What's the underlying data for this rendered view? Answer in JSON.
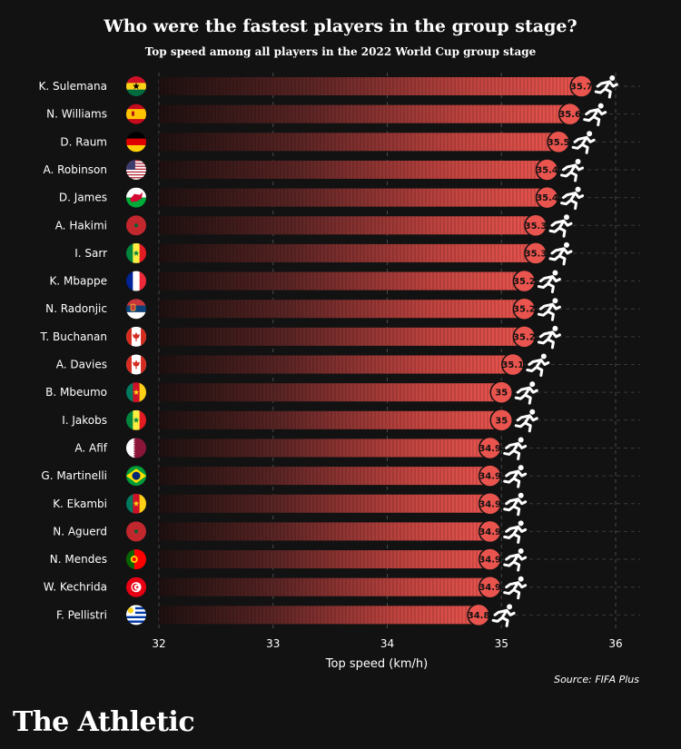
{
  "header": {
    "title": "Who were the fastest players in the group stage?",
    "subtitle": "Top speed among all players in the 2022 World Cup group stage"
  },
  "footer": {
    "source": "Source: FIFA Plus",
    "brand": "The Athletic"
  },
  "colors": {
    "background": "#121212",
    "bar": "#e8524c",
    "bar_dark": "#2a1414",
    "grid": "#4a4a4a"
  },
  "chart_data": {
    "type": "bar",
    "orientation": "horizontal",
    "title": "Who were the fastest players in the group stage?",
    "subtitle": "Top speed among all players in the 2022 World Cup group stage",
    "xlabel": "Top speed (km/h)",
    "ylabel": "",
    "xlim": [
      32,
      36
    ],
    "xticks": [
      32,
      33,
      34,
      35,
      36
    ],
    "grid": "vertical dashed",
    "categories": [
      "K. Sulemana",
      "N. Williams",
      "D. Raum",
      "A. Robinson",
      "D. James",
      "A. Hakimi",
      "I. Sarr",
      "K. Mbappe",
      "N. Radonjic",
      "T. Buchanan",
      "A. Davies",
      "B. Mbeumo",
      "I. Jakobs",
      "A. Afif",
      "G. Martinelli",
      "K. Ekambi",
      "N. Aguerd",
      "N. Mendes",
      "W. Kechrida",
      "F. Pellistri"
    ],
    "values": [
      35.7,
      35.6,
      35.5,
      35.4,
      35.4,
      35.3,
      35.3,
      35.2,
      35.2,
      35.2,
      35.1,
      35,
      35,
      34.9,
      34.9,
      34.9,
      34.9,
      34.9,
      34.9,
      34.8
    ],
    "value_labels": [
      "35.7",
      "35.6",
      "35.5",
      "35.4",
      "35.4",
      "35.3",
      "35.3",
      "35.2",
      "35.2",
      "35.2",
      "35.1",
      "35",
      "35",
      "34.9",
      "34.9",
      "34.9",
      "34.9",
      "34.9",
      "34.9",
      "34.8"
    ],
    "flags": [
      "ghana-flag",
      "spain-flag",
      "germany-flag",
      "usa-flag",
      "wales-flag",
      "morocco-flag",
      "senegal-flag",
      "france-flag",
      "serbia-flag",
      "canada-flag",
      "canada-flag",
      "cameroon-flag",
      "senegal-flag",
      "qatar-flag",
      "brazil-flag",
      "cameroon-flag",
      "morocco-flag",
      "portugal-flag",
      "tunisia-flag",
      "uruguay-flag"
    ],
    "end_icon": "running-player-icon"
  }
}
